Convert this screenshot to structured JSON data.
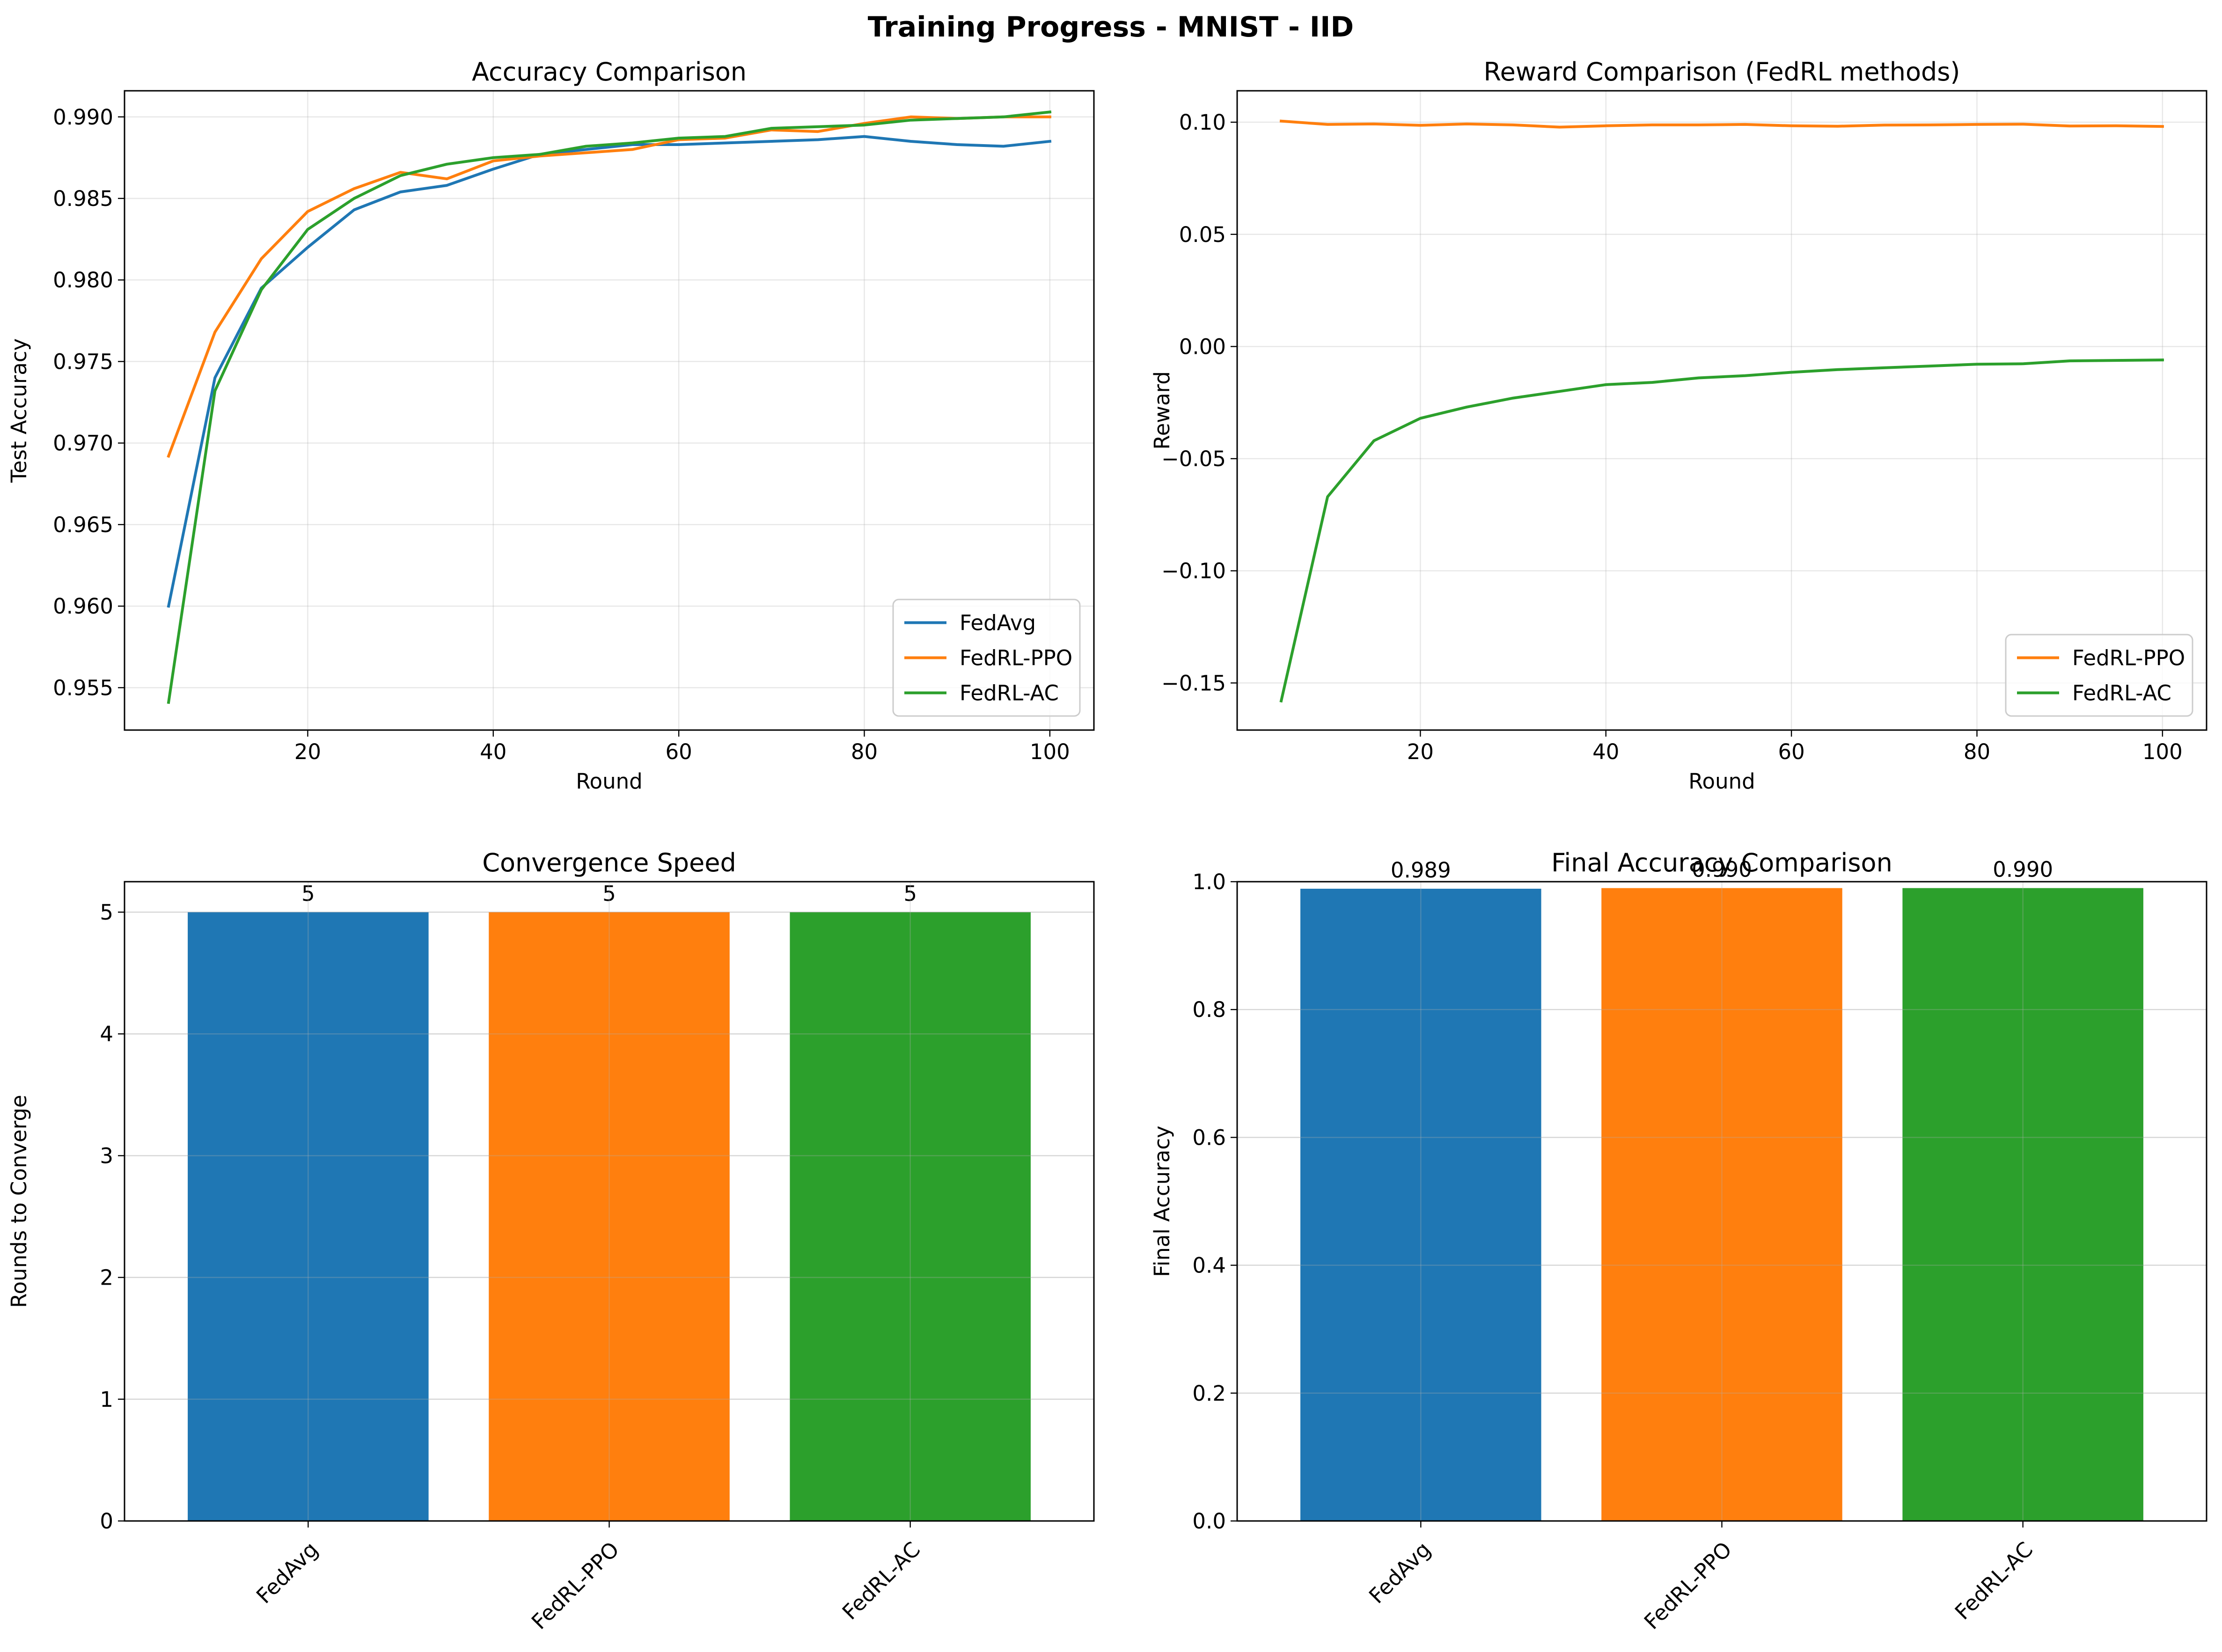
{
  "figure": {
    "suptitle": "Training Progress - MNIST - IID"
  },
  "colors": {
    "FedAvg": "#1f77b4",
    "FedRL-PPO": "#ff7f0e",
    "FedRL-AC": "#2ca02c"
  },
  "chart_data": [
    {
      "type": "line",
      "title": "Accuracy Comparison",
      "xlabel": "Round",
      "ylabel": "Test Accuracy",
      "xlim": [
        0.25,
        104.75
      ],
      "ylim": [
        0.9524,
        0.9916
      ],
      "xticks": [
        20,
        40,
        60,
        80,
        100
      ],
      "yticks": [
        0.955,
        0.96,
        0.965,
        0.97,
        0.975,
        0.98,
        0.985,
        0.99
      ],
      "ytick_labels": [
        "0.955",
        "0.960",
        "0.965",
        "0.970",
        "0.975",
        "0.980",
        "0.985",
        "0.990"
      ],
      "grid": true,
      "legend_position": "lower right",
      "x": [
        5,
        10,
        15,
        20,
        25,
        30,
        35,
        40,
        45,
        50,
        55,
        60,
        65,
        70,
        75,
        80,
        85,
        90,
        95,
        100
      ],
      "series": [
        {
          "name": "FedAvg",
          "values": [
            0.96,
            0.974,
            0.9795,
            0.982,
            0.9843,
            0.9854,
            0.9858,
            0.9868,
            0.9877,
            0.988,
            0.9883,
            0.9883,
            0.9884,
            0.9885,
            0.9886,
            0.9888,
            0.9885,
            0.9883,
            0.9882,
            0.9885
          ]
        },
        {
          "name": "FedRL-PPO",
          "values": [
            0.9692,
            0.9768,
            0.9813,
            0.9842,
            0.9856,
            0.9866,
            0.9862,
            0.9873,
            0.9876,
            0.9878,
            0.988,
            0.9886,
            0.9887,
            0.9892,
            0.9891,
            0.9896,
            0.99,
            0.9899,
            0.99,
            0.99
          ]
        },
        {
          "name": "FedRL-AC",
          "values": [
            0.9541,
            0.9732,
            0.9794,
            0.9831,
            0.985,
            0.9864,
            0.9871,
            0.9875,
            0.9877,
            0.9882,
            0.9884,
            0.9887,
            0.9888,
            0.9893,
            0.9894,
            0.9895,
            0.9898,
            0.9899,
            0.99,
            0.9903
          ]
        }
      ]
    },
    {
      "type": "line",
      "title": "Reward Comparison (FedRL methods)",
      "xlabel": "Round",
      "ylabel": "Reward",
      "xlim": [
        0.25,
        104.75
      ],
      "ylim": [
        -0.171,
        0.114
      ],
      "xticks": [
        20,
        40,
        60,
        80,
        100
      ],
      "yticks": [
        -0.15,
        -0.1,
        -0.05,
        0.0,
        0.05,
        0.1
      ],
      "ytick_labels": [
        "−0.15",
        "−0.10",
        "−0.05",
        "0.00",
        "0.05",
        "0.10"
      ],
      "grid": true,
      "legend_position": "lower right",
      "x": [
        5,
        10,
        15,
        20,
        25,
        30,
        35,
        40,
        45,
        50,
        55,
        60,
        65,
        70,
        75,
        80,
        85,
        90,
        95,
        100
      ],
      "series": [
        {
          "name": "FedRL-PPO",
          "values": [
            0.1005,
            0.099,
            0.0992,
            0.0986,
            0.0992,
            0.0988,
            0.0978,
            0.0984,
            0.0988,
            0.0988,
            0.099,
            0.0984,
            0.0982,
            0.0987,
            0.0988,
            0.099,
            0.0991,
            0.0983,
            0.0984,
            0.0981
          ]
        },
        {
          "name": "FedRL-AC",
          "values": [
            -0.158,
            -0.067,
            -0.042,
            -0.032,
            -0.027,
            -0.023,
            -0.02,
            -0.017,
            -0.016,
            -0.014,
            -0.013,
            -0.0115,
            -0.0103,
            -0.0095,
            -0.0087,
            -0.0079,
            -0.0077,
            -0.0064,
            -0.0062,
            -0.006
          ]
        }
      ]
    },
    {
      "type": "bar",
      "title": "Convergence Speed",
      "xlabel": "",
      "ylabel": "Rounds to Converge",
      "categories": [
        "FedAvg",
        "FedRL-PPO",
        "FedRL-AC"
      ],
      "values": [
        5,
        5,
        5
      ],
      "value_labels": [
        "5",
        "5",
        "5"
      ],
      "ylim": [
        0,
        5.25
      ],
      "yticks": [
        0,
        1,
        2,
        3,
        4,
        5
      ],
      "ytick_labels": [
        "0",
        "1",
        "2",
        "3",
        "4",
        "5"
      ],
      "grid": true
    },
    {
      "type": "bar",
      "title": "Final Accuracy Comparison",
      "xlabel": "",
      "ylabel": "Final Accuracy",
      "categories": [
        "FedAvg",
        "FedRL-PPO",
        "FedRL-AC"
      ],
      "values": [
        0.989,
        0.99,
        0.99
      ],
      "value_labels": [
        "0.989",
        "0.990",
        "0.990"
      ],
      "ylim": [
        0,
        1.0
      ],
      "yticks": [
        0.0,
        0.2,
        0.4,
        0.6,
        0.8,
        1.0
      ],
      "ytick_labels": [
        "0.0",
        "0.2",
        "0.4",
        "0.6",
        "0.8",
        "1.0"
      ],
      "grid": true
    }
  ]
}
